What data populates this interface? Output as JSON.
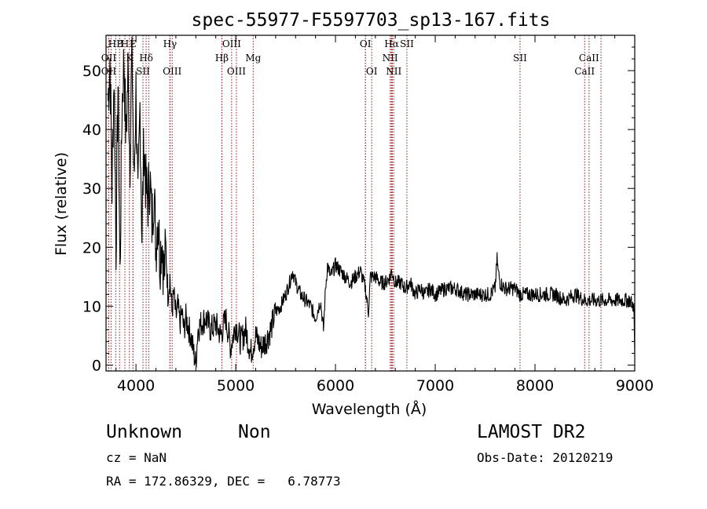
{
  "chart_data": {
    "type": "line",
    "title": "spec-55977-F5597703_sp13-167.fits",
    "xlabel": "Wavelength (Å)",
    "ylabel": "Flux (relative)",
    "xlim": [
      3700,
      9000
    ],
    "ylim": [
      -1,
      56
    ],
    "xticks": [
      4000,
      5000,
      6000,
      7000,
      8000,
      9000
    ],
    "yticks": [
      0,
      10,
      20,
      30,
      40,
      50
    ],
    "grid": false,
    "line_color": "#000000",
    "marker_color": "#8b1a1a",
    "spectrum": {
      "x": [
        3720,
        3740,
        3760,
        3780,
        3800,
        3820,
        3840,
        3860,
        3880,
        3900,
        3920,
        3940,
        3960,
        3980,
        4000,
        4020,
        4040,
        4060,
        4080,
        4100,
        4120,
        4140,
        4160,
        4180,
        4200,
        4220,
        4240,
        4260,
        4280,
        4300,
        4320,
        4340,
        4360,
        4380,
        4400,
        4420,
        4440,
        4460,
        4480,
        4500,
        4550,
        4600,
        4620,
        4650,
        4700,
        4750,
        4800,
        4850,
        4900,
        4950,
        5000,
        5050,
        5100,
        5150,
        5200,
        5250,
        5300,
        5350,
        5400,
        5450,
        5500,
        5540,
        5570,
        5600,
        5650,
        5700,
        5750,
        5800,
        5850,
        5880,
        5900,
        5920,
        5950,
        6000,
        6050,
        6100,
        6150,
        6200,
        6250,
        6300,
        6330,
        6350,
        6400,
        6450,
        6500,
        6550,
        6563,
        6600,
        6650,
        6700,
        6750,
        6800,
        6850,
        6900,
        6950,
        7000,
        7100,
        7200,
        7300,
        7400,
        7500,
        7550,
        7600,
        7620,
        7630,
        7650,
        7700,
        7750,
        7800,
        7850,
        7900,
        7950,
        8000,
        8100,
        8200,
        8300,
        8400,
        8500,
        8600,
        8700,
        8800,
        8900,
        8950,
        8990,
        9000
      ],
      "y": [
        45,
        52,
        30,
        50,
        20,
        48,
        15,
        44,
        52,
        38,
        50,
        35,
        55,
        30,
        47,
        26,
        44,
        22,
        38,
        30,
        28,
        32,
        24,
        30,
        20,
        26,
        18,
        22,
        15,
        20,
        12,
        15,
        9,
        12,
        8,
        10,
        7,
        9,
        6,
        8,
        5,
        0,
        6,
        7,
        8,
        6,
        7,
        5,
        8,
        3,
        7,
        4,
        6,
        2,
        5,
        3,
        4,
        6,
        9,
        10,
        12,
        14,
        16,
        14,
        12,
        11,
        10,
        8,
        11,
        6,
        13,
        17,
        15,
        17,
        16,
        15,
        14,
        15,
        16,
        13,
        9,
        15,
        15,
        14,
        14,
        15,
        16,
        14,
        14,
        13,
        14,
        12,
        13,
        12,
        13,
        12,
        13,
        13,
        12,
        12,
        12,
        12,
        13,
        18,
        16,
        14,
        13,
        13,
        13,
        12,
        12,
        12,
        12,
        12,
        12,
        11,
        12,
        11,
        11,
        11,
        11,
        11,
        11,
        10,
        2
      ]
    },
    "line_markers": [
      {
        "label": "HB",
        "x": 3797,
        "row": 0
      },
      {
        "label": "H",
        "x": 3889,
        "row": 0
      },
      {
        "label": "E",
        "x": 3970,
        "row": 0
      },
      {
        "label": "Hγ",
        "x": 4341,
        "row": 0
      },
      {
        "label": "OIII",
        "x": 4959,
        "row": 0
      },
      {
        "label": "OI",
        "x": 6300,
        "row": 0
      },
      {
        "label": "Hα",
        "x": 6563,
        "row": 0
      },
      {
        "label": "SII",
        "x": 6716,
        "row": 0
      },
      {
        "label": "OII",
        "x": 3727,
        "row": 1
      },
      {
        "label": "K",
        "x": 3934,
        "row": 1
      },
      {
        "label": "Hδ",
        "x": 4102,
        "row": 1
      },
      {
        "label": "Hβ",
        "x": 4861,
        "row": 1
      },
      {
        "label": "Mg",
        "x": 5175,
        "row": 1
      },
      {
        "label": "NII",
        "x": 6548,
        "row": 1
      },
      {
        "label": "SII",
        "x": 7850,
        "row": 1
      },
      {
        "label": "CaII",
        "x": 8542,
        "row": 1
      },
      {
        "label": "OII",
        "x": 3727,
        "row": 2
      },
      {
        "label": "SII",
        "x": 4070,
        "row": 2
      },
      {
        "label": "OIII",
        "x": 4363,
        "row": 2
      },
      {
        "label": "OIII",
        "x": 5007,
        "row": 2
      },
      {
        "label": "OI",
        "x": 6363,
        "row": 2
      },
      {
        "label": "NII",
        "x": 6584,
        "row": 2
      },
      {
        "label": "CaII",
        "x": 8498,
        "row": 2
      }
    ],
    "extra_marker_lines": [
      3750,
      3835,
      3970,
      4128,
      4340,
      4861,
      6300,
      6560,
      6570,
      8662
    ]
  },
  "info": {
    "class": "Unknown",
    "subclass": "Non",
    "survey": "LAMOST DR2",
    "cz": "cz = NaN",
    "obs_date": "Obs-Date: 20120219",
    "coords": "RA = 172.86329, DEC =   6.78773"
  }
}
